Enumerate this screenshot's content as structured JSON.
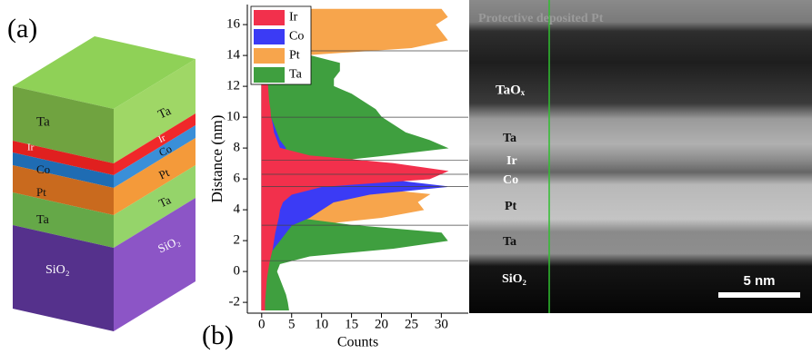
{
  "panel_labels": [
    "(a)",
    "(b)"
  ],
  "stack": {
    "front_labels": [
      "Ta",
      "Ir",
      "Co",
      "Pt",
      "Ta",
      "SiO₂"
    ],
    "side_labels": [
      "Ta",
      "Ir",
      "Co",
      "Pt",
      "Ta",
      "SiO₂"
    ]
  },
  "chart_data": {
    "type": "area",
    "orientation": "horizontal",
    "x_label": "Counts",
    "y_label": "Distance (nm)",
    "distance": [
      -2.5,
      -2,
      -1.5,
      -1,
      -0.5,
      0,
      0.5,
      1,
      1.5,
      2,
      2.5,
      3,
      3.5,
      4,
      4.5,
      5,
      5.5,
      6,
      6.5,
      7,
      7.5,
      8,
      8.5,
      9,
      9.5,
      10,
      10.5,
      11,
      11.5,
      12,
      12.5,
      13,
      13.5,
      14,
      14.5,
      15,
      15.5,
      16,
      16.5,
      17
    ],
    "series": [
      {
        "name": "Ir",
        "color": "#f2304c",
        "values": [
          0.5,
          0.5,
          0.6,
          0.7,
          0.8,
          1,
          1.2,
          1.5,
          1.8,
          2,
          2.2,
          2.5,
          2.8,
          3,
          3.5,
          5,
          10,
          28,
          31,
          22,
          8,
          3,
          2.5,
          2,
          1.8,
          1.5,
          1.4,
          1.2,
          1.1,
          1,
          0.9,
          0.8,
          0.7,
          0.5,
          0.5,
          0.4,
          0.3,
          0.2,
          0.2,
          0.1
        ]
      },
      {
        "name": "Co",
        "color": "#3b3bf5",
        "values": [
          0.5,
          0.5,
          0.5,
          0.5,
          0.5,
          0.5,
          0.8,
          1,
          2,
          3,
          4,
          5,
          8,
          10,
          12,
          18,
          31,
          20,
          8,
          3,
          3,
          4,
          3,
          2.5,
          2,
          1.5,
          1.3,
          1,
          1,
          1,
          0.8,
          0.7,
          0.6,
          0.5,
          0.5,
          0.4,
          0.4,
          0.3,
          0.3,
          0.3
        ]
      },
      {
        "name": "Pt",
        "color": "#f7a54c",
        "values": [
          0,
          0,
          0,
          0,
          0,
          0,
          0.5,
          1,
          1.5,
          2,
          3,
          8,
          20,
          27,
          26,
          28,
          15,
          6,
          3,
          3,
          2,
          2,
          2,
          2,
          2,
          2,
          2,
          2,
          2,
          2,
          2,
          2,
          3,
          6,
          25,
          31,
          30,
          29,
          31,
          30
        ]
      },
      {
        "name": "Ta",
        "color": "#3f9f3f",
        "values": [
          4.5,
          4.3,
          4,
          3.5,
          3,
          2.5,
          3,
          8,
          22,
          31,
          30,
          15,
          5,
          2,
          1.5,
          1,
          1,
          1.5,
          3,
          8,
          20,
          31,
          28,
          24,
          22,
          20,
          19,
          17,
          15,
          12,
          12,
          13,
          13,
          8,
          3,
          2,
          1.5,
          1,
          1,
          1
        ]
      }
    ],
    "interfaces": [
      14.3,
      10,
      7.2,
      6.3,
      5.5,
      3,
      0.7
    ],
    "xlim": [
      -2.4,
      34.5
    ],
    "ylim": [
      -2.7,
      17.3
    ],
    "xticks": [
      0,
      5,
      10,
      15,
      20,
      25,
      30
    ],
    "yticks": [
      -2,
      0,
      2,
      4,
      6,
      8,
      10,
      12,
      14,
      16
    ],
    "legend": "upper left"
  },
  "tem": {
    "labels": [
      "Protective deposited Pt",
      "TaOₓ",
      "Ta",
      "Ir",
      "Co",
      "Pt",
      "Ta",
      "SiO₂"
    ],
    "scale_bar": "5 nm"
  }
}
